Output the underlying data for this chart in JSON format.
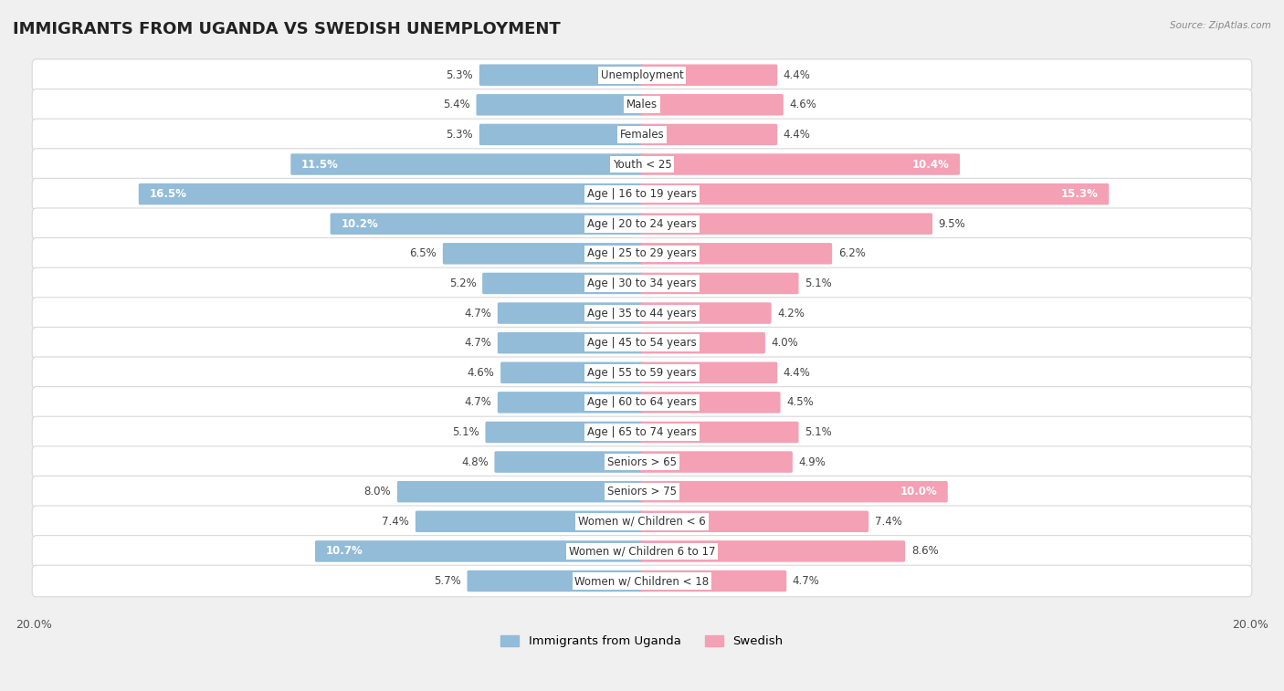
{
  "title": "IMMIGRANTS FROM UGANDA VS SWEDISH UNEMPLOYMENT",
  "source": "Source: ZipAtlas.com",
  "categories": [
    "Unemployment",
    "Males",
    "Females",
    "Youth < 25",
    "Age | 16 to 19 years",
    "Age | 20 to 24 years",
    "Age | 25 to 29 years",
    "Age | 30 to 34 years",
    "Age | 35 to 44 years",
    "Age | 45 to 54 years",
    "Age | 55 to 59 years",
    "Age | 60 to 64 years",
    "Age | 65 to 74 years",
    "Seniors > 65",
    "Seniors > 75",
    "Women w/ Children < 6",
    "Women w/ Children 6 to 17",
    "Women w/ Children < 18"
  ],
  "left_values": [
    5.3,
    5.4,
    5.3,
    11.5,
    16.5,
    10.2,
    6.5,
    5.2,
    4.7,
    4.7,
    4.6,
    4.7,
    5.1,
    4.8,
    8.0,
    7.4,
    10.7,
    5.7
  ],
  "right_values": [
    4.4,
    4.6,
    4.4,
    10.4,
    15.3,
    9.5,
    6.2,
    5.1,
    4.2,
    4.0,
    4.4,
    4.5,
    5.1,
    4.9,
    10.0,
    7.4,
    8.6,
    4.7
  ],
  "left_color": "#92bcd8",
  "right_color": "#f4a0b5",
  "left_label": "Immigrants from Uganda",
  "right_label": "Swedish",
  "background_color": "#f0f0f0",
  "row_bg_color": "#ffffff",
  "row_border_color": "#d8d8d8",
  "max_val": 20.0,
  "title_fontsize": 13,
  "label_fontsize": 8.5,
  "value_fontsize": 8.5
}
